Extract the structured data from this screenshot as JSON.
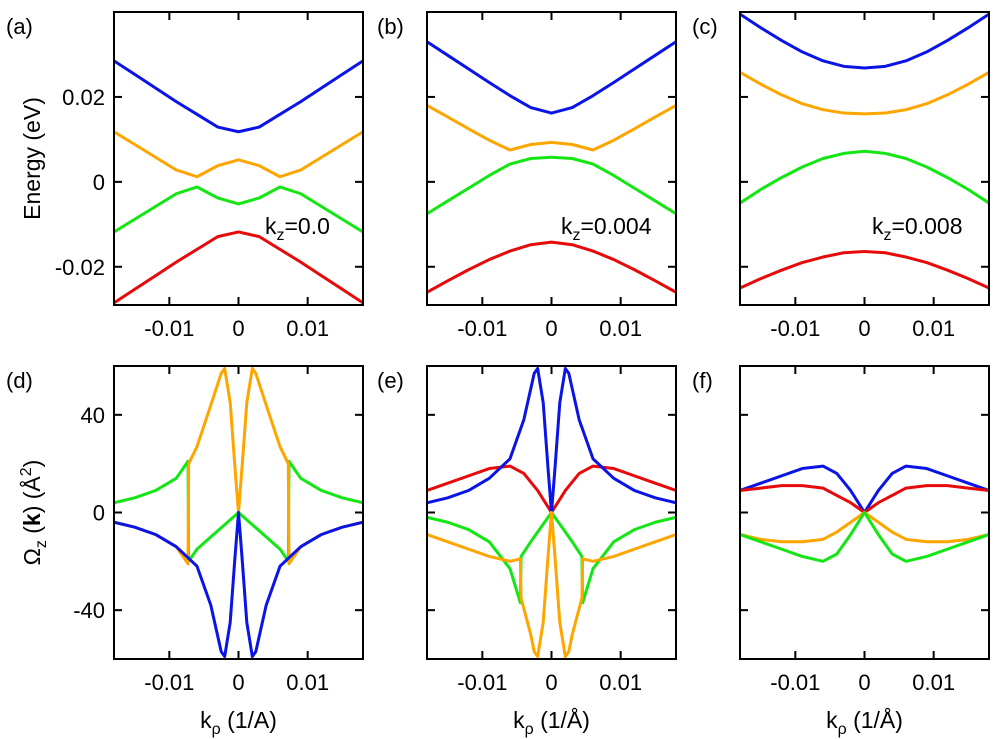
{
  "colors": {
    "blue": "#0a14e6",
    "orange": "#ffa500",
    "green": "#14e614",
    "red": "#e60a0a"
  },
  "chart_data": [
    {
      "panel": "(a)",
      "type": "line",
      "ylabel": "Energy (eV)",
      "xlabel": "",
      "xlim": [
        -0.018,
        0.018
      ],
      "ylim": [
        -0.029,
        0.04
      ],
      "xticks": [
        -0.01,
        0,
        0.01
      ],
      "xtick_labels": [
        "-0.01",
        "0",
        "0.01"
      ],
      "yticks": [
        -0.02,
        0,
        0.02
      ],
      "ytick_labels": [
        "-0.02",
        "0",
        "0.02"
      ],
      "annotation": {
        "main": "k",
        "sub": "z",
        "rest": "=0.0"
      },
      "series": [
        {
          "color": "blue",
          "x": [
            -0.018,
            -0.015,
            -0.012,
            -0.009,
            -0.006,
            -0.003,
            0,
            0.003,
            0.006,
            0.009,
            0.012,
            0.015,
            0.018
          ],
          "y": [
            0.0285,
            0.0253,
            0.0221,
            0.0189,
            0.0159,
            0.0129,
            0.0118,
            0.0129,
            0.0159,
            0.0189,
            0.0221,
            0.0253,
            0.0285
          ]
        },
        {
          "color": "orange",
          "x": [
            -0.018,
            -0.015,
            -0.012,
            -0.009,
            -0.006,
            -0.003,
            0,
            0.003,
            0.006,
            0.009,
            0.012,
            0.015,
            0.018
          ],
          "y": [
            0.0118,
            0.0088,
            0.0058,
            0.0028,
            0.0012,
            0.0038,
            0.0052,
            0.0038,
            0.0012,
            0.0028,
            0.0058,
            0.0088,
            0.0118
          ]
        },
        {
          "color": "green",
          "x": [
            -0.018,
            -0.015,
            -0.012,
            -0.009,
            -0.006,
            -0.003,
            0,
            0.003,
            0.006,
            0.009,
            0.012,
            0.015,
            0.018
          ],
          "y": [
            -0.0118,
            -0.0088,
            -0.0058,
            -0.0028,
            -0.0012,
            -0.0038,
            -0.0052,
            -0.0038,
            -0.0012,
            -0.0028,
            -0.0058,
            -0.0088,
            -0.0118
          ]
        },
        {
          "color": "red",
          "x": [
            -0.018,
            -0.015,
            -0.012,
            -0.009,
            -0.006,
            -0.003,
            0,
            0.003,
            0.006,
            0.009,
            0.012,
            0.015,
            0.018
          ],
          "y": [
            -0.0285,
            -0.0253,
            -0.0221,
            -0.0189,
            -0.0159,
            -0.0129,
            -0.0118,
            -0.0129,
            -0.0159,
            -0.0189,
            -0.0221,
            -0.0253,
            -0.0285
          ]
        }
      ]
    },
    {
      "panel": "(b)",
      "type": "line",
      "ylabel": "",
      "xlabel": "",
      "xlim": [
        -0.018,
        0.018
      ],
      "ylim": [
        -0.029,
        0.04
      ],
      "xticks": [
        -0.01,
        0,
        0.01
      ],
      "xtick_labels": [
        "-0.01",
        "0",
        "0.01"
      ],
      "yticks": [
        -0.02,
        0,
        0.02
      ],
      "ytick_labels": [
        "",
        "",
        ""
      ],
      "annotation": {
        "main": "k",
        "sub": "z",
        "rest": "=0.004"
      },
      "series": [
        {
          "color": "blue",
          "x": [
            -0.018,
            -0.015,
            -0.012,
            -0.009,
            -0.006,
            -0.003,
            0,
            0.003,
            0.006,
            0.009,
            0.012,
            0.015,
            0.018
          ],
          "y": [
            0.033,
            0.0298,
            0.0266,
            0.0234,
            0.0203,
            0.0175,
            0.0162,
            0.0175,
            0.0203,
            0.0234,
            0.0266,
            0.0298,
            0.033
          ]
        },
        {
          "color": "orange",
          "x": [
            -0.018,
            -0.015,
            -0.012,
            -0.009,
            -0.006,
            -0.003,
            0,
            0.003,
            0.006,
            0.009,
            0.012,
            0.015,
            0.018
          ],
          "y": [
            0.018,
            0.0153,
            0.0125,
            0.0098,
            0.0075,
            0.0088,
            0.0093,
            0.0088,
            0.0075,
            0.0098,
            0.0125,
            0.0153,
            0.018
          ]
        },
        {
          "color": "green",
          "x": [
            -0.018,
            -0.015,
            -0.012,
            -0.009,
            -0.006,
            -0.003,
            0,
            0.003,
            0.006,
            0.009,
            0.012,
            0.015,
            0.018
          ],
          "y": [
            -0.0075,
            -0.0045,
            -0.0015,
            0.0015,
            0.0042,
            0.0055,
            0.0058,
            0.0055,
            0.0042,
            0.0015,
            -0.0015,
            -0.0045,
            -0.0075
          ]
        },
        {
          "color": "red",
          "x": [
            -0.018,
            -0.015,
            -0.012,
            -0.009,
            -0.006,
            -0.003,
            0,
            0.003,
            0.006,
            0.009,
            0.012,
            0.015,
            0.018
          ],
          "y": [
            -0.026,
            -0.0233,
            -0.0207,
            -0.0183,
            -0.0163,
            -0.0148,
            -0.0142,
            -0.0148,
            -0.0163,
            -0.0183,
            -0.0207,
            -0.0233,
            -0.026
          ]
        }
      ]
    },
    {
      "panel": "(c)",
      "type": "line",
      "ylabel": "",
      "xlabel": "",
      "xlim": [
        -0.018,
        0.018
      ],
      "ylim": [
        -0.029,
        0.04
      ],
      "xticks": [
        -0.01,
        0,
        0.01
      ],
      "xtick_labels": [
        "-0.01",
        "0",
        "0.01"
      ],
      "yticks": [
        -0.02,
        0,
        0.02
      ],
      "ytick_labels": [
        "",
        "",
        ""
      ],
      "annotation": {
        "main": "k",
        "sub": "z",
        "rest": "=0.008"
      },
      "series": [
        {
          "color": "blue",
          "x": [
            -0.018,
            -0.015,
            -0.012,
            -0.009,
            -0.006,
            -0.003,
            0,
            0.003,
            0.006,
            0.009,
            0.012,
            0.015,
            0.018
          ],
          "y": [
            0.0395,
            0.0363,
            0.0333,
            0.0306,
            0.0285,
            0.0272,
            0.0268,
            0.0272,
            0.0285,
            0.0306,
            0.0333,
            0.0363,
            0.0395
          ]
        },
        {
          "color": "orange",
          "x": [
            -0.018,
            -0.015,
            -0.012,
            -0.009,
            -0.006,
            -0.003,
            0,
            0.003,
            0.006,
            0.009,
            0.012,
            0.015,
            0.018
          ],
          "y": [
            0.0258,
            0.023,
            0.0205,
            0.0184,
            0.017,
            0.0162,
            0.016,
            0.0162,
            0.017,
            0.0184,
            0.0205,
            0.023,
            0.0258
          ]
        },
        {
          "color": "green",
          "x": [
            -0.018,
            -0.015,
            -0.012,
            -0.009,
            -0.006,
            -0.003,
            0,
            0.003,
            0.006,
            0.009,
            0.012,
            0.015,
            0.018
          ],
          "y": [
            -0.005,
            -0.0018,
            0.001,
            0.0035,
            0.0055,
            0.0067,
            0.0072,
            0.0067,
            0.0055,
            0.0035,
            0.001,
            -0.0018,
            -0.005
          ]
        },
        {
          "color": "red",
          "x": [
            -0.018,
            -0.015,
            -0.012,
            -0.009,
            -0.006,
            -0.003,
            0,
            0.003,
            0.006,
            0.009,
            0.012,
            0.015,
            0.018
          ],
          "y": [
            -0.025,
            -0.0228,
            -0.0208,
            -0.019,
            -0.0177,
            -0.0167,
            -0.0164,
            -0.0167,
            -0.0177,
            -0.019,
            -0.0208,
            -0.0228,
            -0.025
          ]
        }
      ]
    },
    {
      "panel": "(d)",
      "type": "line",
      "ylabel_parts": {
        "omega": "Ω",
        "sub": "z",
        "bold_k": "k",
        "angstrom": "Å",
        "sup": "2"
      },
      "xlabel_parts": {
        "main": "k",
        "sub": "ρ",
        "rest": " (1/A)"
      },
      "xlim": [
        -0.018,
        0.018
      ],
      "ylim": [
        -60,
        60
      ],
      "xticks": [
        -0.01,
        0,
        0.01
      ],
      "xtick_labels": [
        "-0.01",
        "0",
        "0.01"
      ],
      "yticks": [
        -40,
        0,
        40
      ],
      "ytick_labels": [
        "-40",
        "0",
        "40"
      ],
      "series": [
        {
          "color": "green",
          "x": [
            -0.018,
            -0.015,
            -0.012,
            -0.009,
            -0.0073,
            -0.0072,
            -0.006,
            -0.004,
            -0.002,
            0,
            0.002,
            0.004,
            0.006,
            0.0072,
            0.0073,
            0.009,
            0.012,
            0.015,
            0.018
          ],
          "y": [
            4,
            6,
            9,
            14,
            21,
            -20,
            -15,
            -10,
            -5,
            0,
            -5,
            -10,
            -15,
            -20,
            21,
            14,
            9,
            6,
            4
          ]
        },
        {
          "color": "orange",
          "x": [
            -0.018,
            -0.015,
            -0.012,
            -0.009,
            -0.0073,
            -0.0072,
            -0.006,
            -0.004,
            -0.0025,
            -0.002,
            -0.0012,
            -0.0005,
            0,
            0.0005,
            0.0012,
            0.002,
            0.0025,
            0.004,
            0.006,
            0.0072,
            0.0073,
            0.009,
            0.012,
            0.015,
            0.018
          ],
          "y": [
            -4,
            -6,
            -9,
            -14,
            -21,
            20,
            27,
            44,
            57,
            59,
            45,
            18,
            0,
            18,
            45,
            59,
            57,
            44,
            27,
            20,
            -21,
            -14,
            -9,
            -6,
            -4
          ]
        },
        {
          "color": "blue",
          "x": [
            -0.018,
            -0.015,
            -0.012,
            -0.009,
            -0.006,
            -0.004,
            -0.0025,
            -0.002,
            -0.0012,
            -0.0005,
            0,
            0.0005,
            0.0012,
            0.002,
            0.0025,
            0.004,
            0.006,
            0.009,
            0.012,
            0.015,
            0.018
          ],
          "y": [
            -4,
            -6,
            -9,
            -14,
            -22,
            -38,
            -57,
            -59,
            -45,
            -18,
            0,
            -18,
            -45,
            -59,
            -57,
            -38,
            -22,
            -14,
            -9,
            -6,
            -4
          ]
        }
      ]
    },
    {
      "panel": "(e)",
      "type": "line",
      "xlabel_parts": {
        "main": "k",
        "sub": "ρ",
        "rest": " (1/Å)"
      },
      "xlim": [
        -0.018,
        0.018
      ],
      "ylim": [
        -60,
        60
      ],
      "xticks": [
        -0.01,
        0,
        0.01
      ],
      "xtick_labels": [
        "-0.01",
        "0",
        "0.01"
      ],
      "yticks": [
        -40,
        0,
        40
      ],
      "ytick_labels": [
        "",
        "",
        ""
      ],
      "series": [
        {
          "color": "red",
          "x": [
            -0.018,
            -0.015,
            -0.012,
            -0.009,
            -0.006,
            -0.004,
            -0.002,
            0,
            0.002,
            0.004,
            0.006,
            0.009,
            0.012,
            0.015,
            0.018
          ],
          "y": [
            9,
            12,
            15,
            18,
            19,
            16,
            9,
            0,
            9,
            16,
            19,
            18,
            15,
            12,
            9
          ]
        },
        {
          "color": "blue",
          "x": [
            -0.018,
            -0.015,
            -0.012,
            -0.009,
            -0.006,
            -0.004,
            -0.0025,
            -0.002,
            -0.0012,
            -0.0005,
            0,
            0.0005,
            0.0012,
            0.002,
            0.0025,
            0.004,
            0.006,
            0.009,
            0.012,
            0.015,
            0.018
          ],
          "y": [
            4,
            6,
            9,
            14,
            22,
            38,
            57,
            59,
            45,
            18,
            0,
            18,
            45,
            59,
            57,
            38,
            22,
            14,
            9,
            6,
            4
          ]
        },
        {
          "color": "green",
          "x": [
            -0.018,
            -0.015,
            -0.012,
            -0.009,
            -0.006,
            -0.0045,
            -0.0044,
            -0.003,
            -0.0015,
            0,
            0.0015,
            0.003,
            0.0044,
            0.0045,
            0.006,
            0.009,
            0.012,
            0.015,
            0.018
          ],
          "y": [
            -2,
            -4,
            -7,
            -12,
            -23,
            -37,
            -18,
            -12,
            -6,
            0,
            -6,
            -12,
            -18,
            -37,
            -23,
            -12,
            -7,
            -4,
            -2
          ]
        },
        {
          "color": "orange",
          "x": [
            -0.018,
            -0.015,
            -0.012,
            -0.009,
            -0.006,
            -0.0045,
            -0.0044,
            -0.003,
            -0.0025,
            -0.002,
            -0.0012,
            -0.0005,
            0,
            0.0005,
            0.0012,
            0.002,
            0.0025,
            0.003,
            0.0044,
            0.0045,
            0.006,
            0.009,
            0.012,
            0.015,
            0.018
          ],
          "y": [
            -9,
            -12,
            -15,
            -18,
            -20,
            -19,
            -35,
            -50,
            -57,
            -59,
            -45,
            -18,
            0,
            -18,
            -45,
            -59,
            -57,
            -50,
            -35,
            -19,
            -20,
            -18,
            -15,
            -12,
            -9
          ]
        }
      ]
    },
    {
      "panel": "(f)",
      "type": "line",
      "xlabel_parts": {
        "main": "k",
        "sub": "ρ",
        "rest": " (1/Å)"
      },
      "xlim": [
        -0.018,
        0.018
      ],
      "ylim": [
        -60,
        60
      ],
      "xticks": [
        -0.01,
        0,
        0.01
      ],
      "xtick_labels": [
        "-0.01",
        "0",
        "0.01"
      ],
      "yticks": [
        -40,
        0,
        40
      ],
      "ytick_labels": [
        "",
        "",
        ""
      ],
      "series": [
        {
          "color": "blue",
          "x": [
            -0.018,
            -0.015,
            -0.012,
            -0.009,
            -0.006,
            -0.004,
            -0.002,
            0,
            0.002,
            0.004,
            0.006,
            0.009,
            0.012,
            0.015,
            0.018
          ],
          "y": [
            9,
            12,
            15,
            18,
            19,
            16,
            9,
            0,
            9,
            16,
            19,
            18,
            15,
            12,
            9
          ]
        },
        {
          "color": "red",
          "x": [
            -0.018,
            -0.015,
            -0.012,
            -0.009,
            -0.006,
            -0.004,
            -0.002,
            0,
            0.002,
            0.004,
            0.006,
            0.009,
            0.012,
            0.015,
            0.018
          ],
          "y": [
            9,
            10,
            11,
            11,
            10,
            7,
            4,
            0,
            4,
            7,
            10,
            11,
            11,
            10,
            9
          ]
        },
        {
          "color": "orange",
          "x": [
            -0.018,
            -0.015,
            -0.012,
            -0.009,
            -0.006,
            -0.004,
            -0.002,
            0,
            0.002,
            0.004,
            0.006,
            0.009,
            0.012,
            0.015,
            0.018
          ],
          "y": [
            -9,
            -11,
            -12,
            -12,
            -11,
            -8,
            -4,
            0,
            -4,
            -8,
            -11,
            -12,
            -12,
            -11,
            -9
          ]
        },
        {
          "color": "green",
          "x": [
            -0.018,
            -0.015,
            -0.012,
            -0.009,
            -0.006,
            -0.004,
            -0.002,
            0,
            0.002,
            0.004,
            0.006,
            0.009,
            0.012,
            0.015,
            0.018
          ],
          "y": [
            -9,
            -12,
            -15,
            -18,
            -20,
            -17,
            -9,
            0,
            -9,
            -17,
            -20,
            -18,
            -15,
            -12,
            -9
          ]
        }
      ]
    }
  ]
}
